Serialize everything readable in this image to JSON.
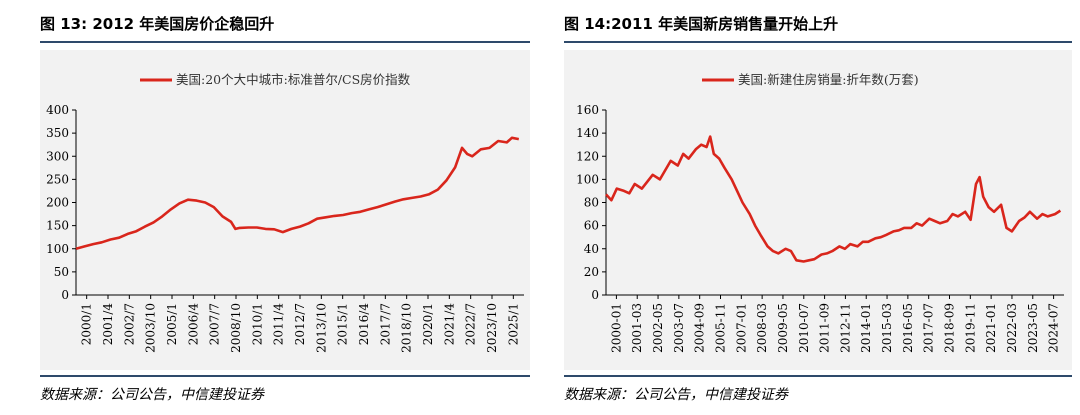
{
  "left": {
    "title": "图 13: 2012 年美国房价企稳回升",
    "source": "数据来源：公司公告，中信建投证券"
  },
  "right": {
    "title": "图 14:2011 年美国新房销售量开始上升",
    "source": "数据来源：公司公告，中信建投证券"
  },
  "chart_data": [
    {
      "type": "line",
      "legend_position": "top-center",
      "grid": false,
      "color": "#d9261c",
      "ylim": [
        0,
        400
      ],
      "yticks": [
        0,
        50,
        100,
        150,
        200,
        250,
        300,
        350,
        400
      ],
      "xlim": [
        2000.0,
        2026.0
      ],
      "xtick_labels": [
        "2000/1",
        "2001/4",
        "2002/7",
        "2003/10",
        "2005/1",
        "2006/4",
        "2007/7",
        "2008/10",
        "2010/1",
        "2011/4",
        "2012/7",
        "2013/10",
        "2015/1",
        "2016/4",
        "2017/7",
        "2018/10",
        "2020/1",
        "2021/4",
        "2022/7",
        "2023/10",
        "2025/1"
      ],
      "series": [
        {
          "name": "美国:20个大中城市:标准普尔/CS房价指数",
          "x": [
            2000.0,
            2000.5,
            2001.0,
            2001.5,
            2002.0,
            2002.5,
            2003.0,
            2003.5,
            2004.0,
            2004.5,
            2005.0,
            2005.5,
            2006.0,
            2006.5,
            2007.0,
            2007.5,
            2008.0,
            2008.5,
            2009.0,
            2009.25,
            2009.5,
            2010.0,
            2010.5,
            2011.0,
            2011.5,
            2012.0,
            2012.5,
            2013.0,
            2013.5,
            2014.0,
            2014.5,
            2015.0,
            2015.5,
            2016.0,
            2016.5,
            2017.0,
            2017.5,
            2018.0,
            2018.5,
            2019.0,
            2019.5,
            2020.0,
            2020.5,
            2021.0,
            2021.5,
            2022.0,
            2022.4,
            2022.7,
            2023.0,
            2023.5,
            2024.0,
            2024.5,
            2025.0,
            2025.3,
            2025.7
          ],
          "y": [
            100,
            105,
            110,
            114,
            120,
            124,
            132,
            138,
            148,
            157,
            170,
            185,
            198,
            206,
            204,
            200,
            190,
            170,
            158,
            143,
            145,
            146,
            146,
            143,
            142,
            136,
            143,
            148,
            155,
            165,
            168,
            171,
            173,
            177,
            180,
            185,
            190,
            196,
            202,
            207,
            210,
            213,
            218,
            228,
            248,
            276,
            318,
            305,
            300,
            315,
            318,
            333,
            330,
            340,
            337
          ]
        }
      ]
    },
    {
      "type": "line",
      "legend_position": "top-center",
      "grid": false,
      "color": "#d9261c",
      "ylim": [
        0,
        160
      ],
      "yticks": [
        0,
        20,
        40,
        60,
        80,
        100,
        120,
        140,
        160
      ],
      "xlim": [
        2000.0,
        2025.5
      ],
      "xtick_labels": [
        "2000-01",
        "2001-03",
        "2002-05",
        "2003-07",
        "2004-09",
        "2005-11",
        "2007-01",
        "2008-03",
        "2009-05",
        "2010-07",
        "2011-09",
        "2012-11",
        "2014-01",
        "2015-03",
        "2016-05",
        "2017-07",
        "2018-09",
        "2019-11",
        "2021-01",
        "2022-03",
        "2023-05",
        "2024-07"
      ],
      "series": [
        {
          "name": "美国:新建住房销量:折年数(万套)",
          "x": [
            2000.0,
            2000.3,
            2000.6,
            2001.0,
            2001.3,
            2001.6,
            2002.0,
            2002.3,
            2002.6,
            2003.0,
            2003.3,
            2003.6,
            2004.0,
            2004.3,
            2004.6,
            2005.0,
            2005.3,
            2005.6,
            2005.8,
            2006.0,
            2006.3,
            2006.6,
            2007.0,
            2007.3,
            2007.6,
            2008.0,
            2008.3,
            2008.6,
            2009.0,
            2009.3,
            2009.6,
            2010.0,
            2010.3,
            2010.6,
            2011.0,
            2011.3,
            2011.6,
            2012.0,
            2012.3,
            2012.6,
            2013.0,
            2013.3,
            2013.6,
            2014.0,
            2014.3,
            2014.6,
            2015.0,
            2015.3,
            2015.6,
            2016.0,
            2016.3,
            2016.6,
            2017.0,
            2017.3,
            2017.6,
            2018.0,
            2018.3,
            2018.6,
            2019.0,
            2019.3,
            2019.6,
            2020.0,
            2020.3,
            2020.6,
            2020.8,
            2021.0,
            2021.3,
            2021.6,
            2022.0,
            2022.3,
            2022.6,
            2023.0,
            2023.3,
            2023.6,
            2024.0,
            2024.3,
            2024.6,
            2025.0,
            2025.3
          ],
          "y": [
            87,
            82,
            92,
            90,
            88,
            96,
            92,
            98,
            104,
            100,
            108,
            116,
            112,
            122,
            118,
            126,
            130,
            128,
            137,
            122,
            118,
            110,
            100,
            90,
            80,
            70,
            60,
            52,
            42,
            38,
            36,
            40,
            38,
            30,
            29,
            30,
            31,
            35,
            36,
            38,
            42,
            40,
            44,
            42,
            46,
            46,
            49,
            50,
            52,
            55,
            56,
            58,
            58,
            62,
            60,
            66,
            64,
            62,
            64,
            70,
            68,
            72,
            65,
            96,
            102,
            85,
            76,
            72,
            78,
            58,
            55,
            64,
            67,
            72,
            66,
            70,
            68,
            70,
            73
          ]
        }
      ]
    }
  ]
}
